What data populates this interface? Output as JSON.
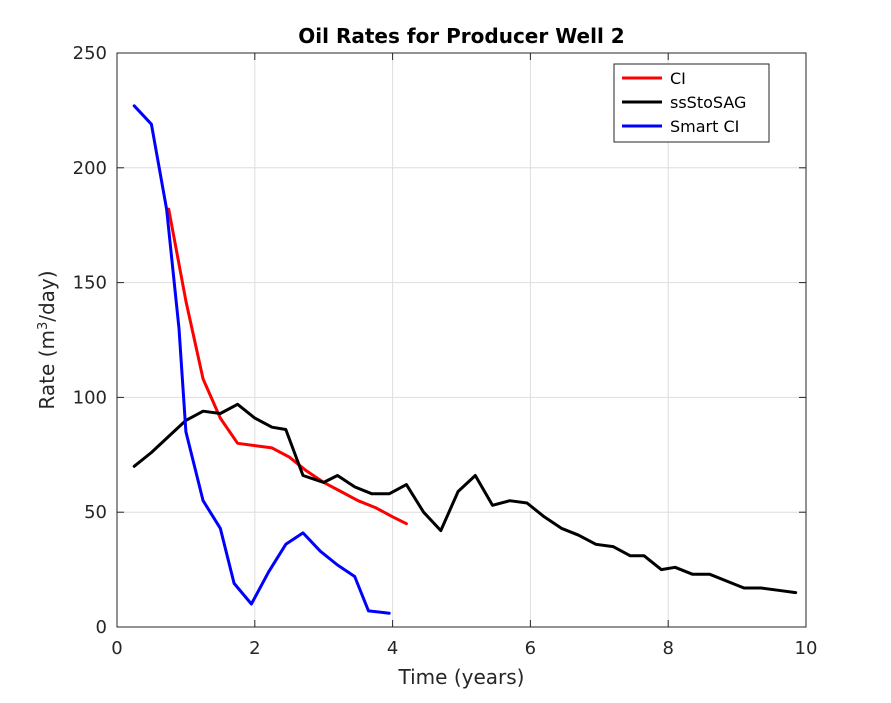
{
  "chart_data": {
    "type": "line",
    "title": "Oil Rates for Producer Well 2",
    "xlabel": "Time (years)",
    "ylabel_main": "Rate (m",
    "ylabel_sup": "3",
    "ylabel_tail": "/day)",
    "xlim": [
      0,
      10
    ],
    "ylim": [
      0,
      250
    ],
    "xticks": [
      0,
      2,
      4,
      6,
      8,
      10
    ],
    "yticks": [
      0,
      50,
      100,
      150,
      200,
      250
    ],
    "grid": true,
    "legend_position": "top-right",
    "series": [
      {
        "name": "CI",
        "color": "#ff0000",
        "x": [
          0.75,
          1.0,
          1.25,
          1.5,
          1.75,
          2.0,
          2.25,
          2.5,
          2.75,
          3.0,
          3.25,
          3.5,
          3.75,
          4.0,
          4.2
        ],
        "y": [
          182,
          142,
          108,
          91,
          80,
          79,
          78,
          74,
          68,
          63,
          59,
          55,
          52,
          48,
          45
        ]
      },
      {
        "name": "ssStoSAG",
        "color": "#000000",
        "x": [
          0.25,
          0.5,
          0.75,
          1.0,
          1.25,
          1.5,
          1.75,
          2.0,
          2.25,
          2.45,
          2.7,
          3.0,
          3.2,
          3.45,
          3.7,
          3.95,
          4.2,
          4.45,
          4.7,
          4.95,
          5.2,
          5.45,
          5.7,
          5.95,
          6.2,
          6.45,
          6.7,
          6.95,
          7.2,
          7.45,
          7.65,
          7.9,
          8.1,
          8.35,
          8.6,
          8.85,
          9.1,
          9.35,
          9.6,
          9.85
        ],
        "y": [
          70,
          76,
          83,
          90,
          94,
          93,
          97,
          91,
          87,
          86,
          66,
          63,
          66,
          61,
          58,
          58,
          62,
          50,
          42,
          59,
          66,
          53,
          55,
          54,
          48,
          43,
          40,
          36,
          35,
          31,
          31,
          25,
          26,
          23,
          23,
          20,
          17,
          17,
          16,
          15
        ]
      },
      {
        "name": "Smart CI",
        "color": "#0000ff",
        "x": [
          0.25,
          0.5,
          0.72,
          0.9,
          1.0,
          1.25,
          1.5,
          1.7,
          1.95,
          2.2,
          2.45,
          2.7,
          2.95,
          3.2,
          3.45,
          3.65,
          3.95
        ],
        "y": [
          227,
          219,
          182,
          130,
          85,
          55,
          43,
          19,
          10,
          24,
          36,
          41,
          33,
          27,
          22,
          7,
          6
        ]
      }
    ]
  }
}
